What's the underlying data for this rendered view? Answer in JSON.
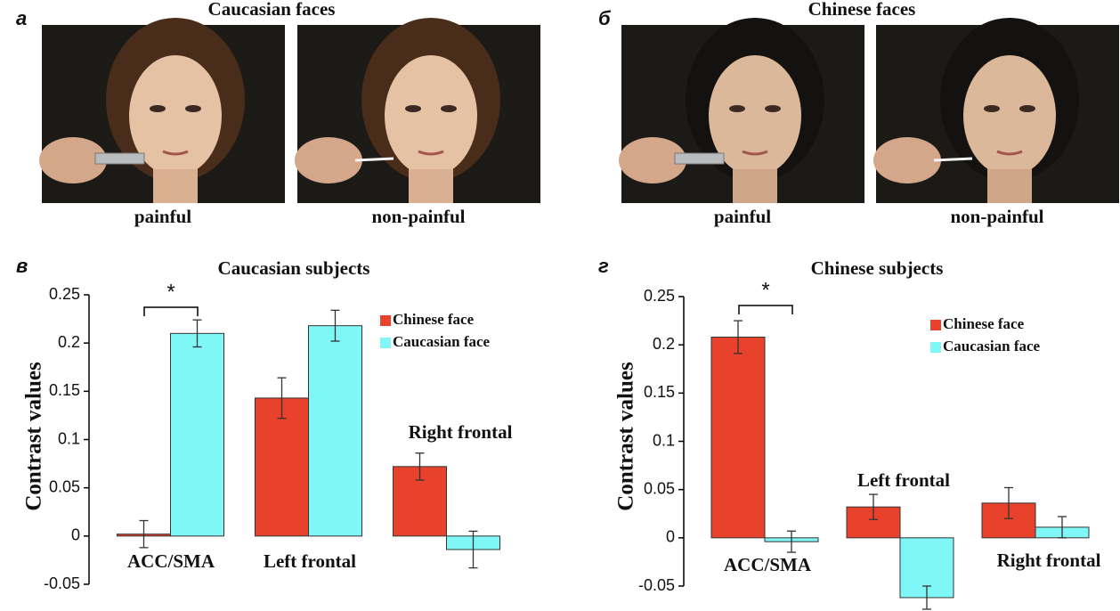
{
  "panels": [
    {
      "label": "а",
      "title": "Caucasian faces",
      "photos": [
        "painful",
        "non-painful"
      ]
    },
    {
      "label": "б",
      "title": "Chinese faces",
      "photos": [
        "painful",
        "non-painful"
      ]
    }
  ],
  "chart_data": [
    {
      "type": "bar",
      "label": "в",
      "title": "Caucasian subjects",
      "y_label": "Contrast values",
      "categories": [
        "ACC/SMA",
        "Left frontal",
        "Right frontal"
      ],
      "series": [
        {
          "name": "Chinese face",
          "color": "#e8412c",
          "values": [
            0.002,
            0.143,
            0.072
          ],
          "errors": [
            0.014,
            0.021,
            0.014
          ]
        },
        {
          "name": "Caucasian face",
          "color": "#80f7f7",
          "values": [
            0.21,
            0.218,
            -0.014
          ],
          "errors": [
            0.014,
            0.016,
            0.019
          ]
        }
      ],
      "ylim": [
        -0.05,
        0.25
      ],
      "yticks": [
        -0.05,
        0,
        0.05,
        0.1,
        0.15,
        0.2,
        0.25
      ],
      "annotation": "*"
    },
    {
      "type": "bar",
      "label": "г",
      "title": "Chinese subjects",
      "y_label": "Contrast values",
      "categories": [
        "ACC/SMA",
        "Left frontal",
        "Right frontal"
      ],
      "series": [
        {
          "name": "Chinese face",
          "color": "#e8412c",
          "values": [
            0.208,
            0.032,
            0.036
          ],
          "errors": [
            0.017,
            0.013,
            0.016
          ]
        },
        {
          "name": "Caucasian face",
          "color": "#80f7f7",
          "values": [
            -0.004,
            -0.062,
            0.011
          ],
          "errors": [
            0.011,
            0.012,
            0.011
          ]
        }
      ],
      "ylim": [
        -0.05,
        0.25
      ],
      "yticks": [
        -0.05,
        0,
        0.05,
        0.1,
        0.15,
        0.2,
        0.25
      ],
      "annotation": "*"
    }
  ]
}
